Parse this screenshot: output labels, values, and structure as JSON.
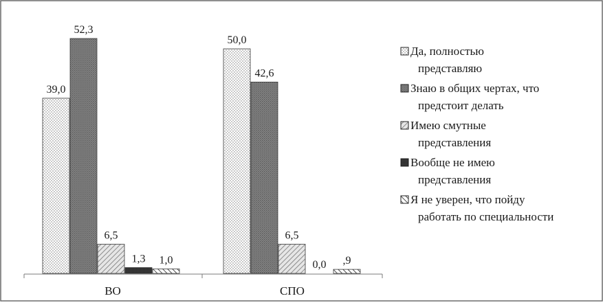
{
  "chart_data": {
    "type": "bar",
    "categories": [
      "ВО",
      "СПО"
    ],
    "series": [
      {
        "name": "Да, полностью представляю",
        "values": [
          39.0,
          50.0
        ],
        "labels": [
          "39,0",
          "50,0"
        ],
        "pattern": "dots"
      },
      {
        "name": "Знаю в общих чертах, что предстоит делать",
        "values": [
          52.3,
          42.6
        ],
        "labels": [
          "52,3",
          "42,6"
        ],
        "pattern": "dense"
      },
      {
        "name": "Имею смутные представления",
        "values": [
          6.5,
          6.5
        ],
        "labels": [
          "6,5",
          "6,5"
        ],
        "pattern": "hatch"
      },
      {
        "name": "Вообще не имею представления",
        "values": [
          1.3,
          0.0
        ],
        "labels": [
          "1,3",
          "0,0"
        ],
        "pattern": "dark"
      },
      {
        "name": "Я не уверен, что пойду работать по специальности",
        "values": [
          1.0,
          0.9
        ],
        "labels": [
          "1,0",
          ",9"
        ],
        "pattern": "stripes"
      }
    ],
    "ylim": [
      0,
      60
    ],
    "grid": false,
    "legend_position": "right",
    "legend": [
      [
        "Да, полностью",
        "представляю"
      ],
      [
        "Знаю в общих чертах, что",
        "предстоит делать"
      ],
      [
        "Имею смутные",
        "представления"
      ],
      [
        "Вообще не имею",
        "представления"
      ],
      [
        "Я не уверен, что пойду",
        "работать по специальности"
      ]
    ]
  }
}
